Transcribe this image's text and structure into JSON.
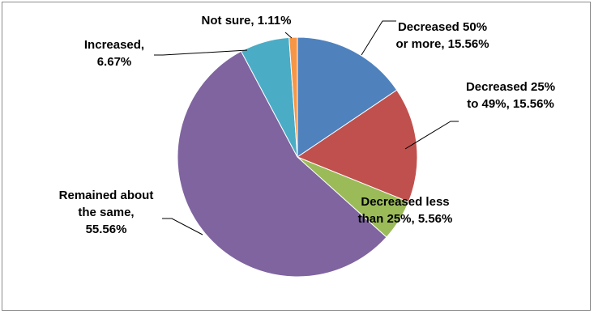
{
  "chart_data": {
    "type": "pie",
    "title": "",
    "slices": [
      {
        "name": "Decreased 50% or more",
        "value": 15.56,
        "color": "#4f81bd",
        "label_lines": [
          "Decreased 50%",
          "or more, 15.56%"
        ]
      },
      {
        "name": "Decreased 25% to 49%",
        "value": 15.56,
        "color": "#c0504d",
        "label_lines": [
          "Decreased 25%",
          "to 49%, 15.56%"
        ]
      },
      {
        "name": "Decreased less than 25%",
        "value": 5.56,
        "color": "#9bbb59",
        "label_lines": [
          "Decreased less",
          "than 25%, 5.56%"
        ]
      },
      {
        "name": "Remained about the same",
        "value": 55.56,
        "color": "#7f64a0",
        "label_lines": [
          "Remained about",
          "the same,",
          "55.56%"
        ]
      },
      {
        "name": "Increased",
        "value": 6.67,
        "color": "#4bacc6",
        "label_lines": [
          "Increased,",
          "6.67%"
        ]
      },
      {
        "name": "Not sure",
        "value": 1.11,
        "color": "#f79646",
        "label_lines": [
          "Not sure, 1.11%"
        ]
      }
    ],
    "legend": "none"
  }
}
